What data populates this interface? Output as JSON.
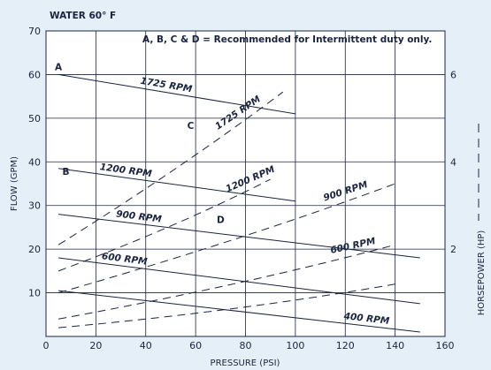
{
  "chart_data": {
    "type": "line",
    "note_top_left": "WATER 60° F",
    "annotation": "A, B, C & D = Recommended for Intermittent duty only.",
    "xlabel": "PRESSURE (PSI)",
    "ylabel_left": "FLOW (GPM)",
    "ylabel_right": "HORSEPOWER (HP)",
    "xlim": [
      0,
      160
    ],
    "ylim_left": [
      0,
      70
    ],
    "ylim_right": [
      0,
      7
    ],
    "x_ticks": [
      "0",
      "20",
      "40",
      "60",
      "80",
      "100",
      "120",
      "140",
      "160"
    ],
    "y_ticks_left": [
      "10",
      "20",
      "30",
      "40",
      "50",
      "60",
      "70"
    ],
    "y_ticks_right": [
      "2",
      "4",
      "6"
    ],
    "grid": true,
    "flow_series": [
      {
        "name": "1725 RPM",
        "x": [
          5,
          100
        ],
        "y": [
          60,
          51
        ]
      },
      {
        "name": "1200 RPM",
        "x": [
          5,
          100
        ],
        "y": [
          38.5,
          31
        ]
      },
      {
        "name": "900 RPM",
        "x": [
          5,
          150
        ],
        "y": [
          28,
          18
        ]
      },
      {
        "name": "600 RPM",
        "x": [
          5,
          150
        ],
        "y": [
          18,
          7.5
        ]
      },
      {
        "name": "400 RPM",
        "x": [
          5,
          150
        ],
        "y": [
          10.5,
          1
        ]
      }
    ],
    "hp_series": [
      {
        "name": "1725 RPM",
        "x": [
          5,
          95
        ],
        "y": [
          2.1,
          5.6
        ]
      },
      {
        "name": "1200 RPM",
        "x": [
          5,
          90
        ],
        "y": [
          1.5,
          3.6
        ]
      },
      {
        "name": "900 RPM",
        "x": [
          5,
          140
        ],
        "y": [
          1.0,
          3.5
        ]
      },
      {
        "name": "600 RPM",
        "x": [
          5,
          140
        ],
        "y": [
          0.4,
          2.1
        ]
      },
      {
        "name": "400 RPM",
        "x": [
          5,
          140
        ],
        "y": [
          0.2,
          1.2
        ]
      }
    ],
    "point_labels": [
      {
        "text": "A",
        "x": 5,
        "y": 61
      },
      {
        "text": "B",
        "x": 8,
        "y": 37
      },
      {
        "text": "C",
        "x": 58,
        "y": 47.5
      },
      {
        "text": "D",
        "x": 70,
        "y": 26
      }
    ]
  }
}
